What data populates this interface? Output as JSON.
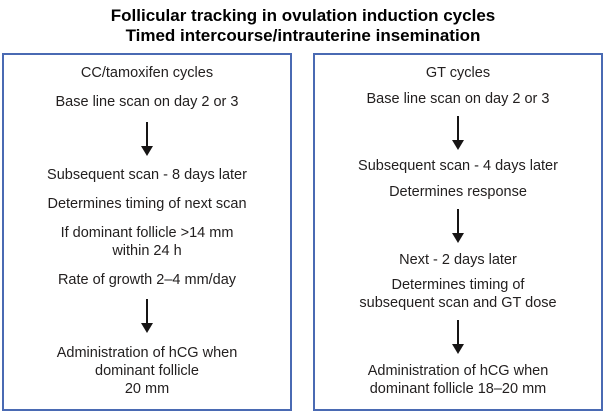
{
  "title": {
    "line1": "Follicular tracking in ovulation induction cycles",
    "line2": "Timed intercourse/intrauterine insemination"
  },
  "colors": {
    "box_border": "#4a6ab3",
    "text": "#232020",
    "arrow": "#171515",
    "background": "#ffffff"
  },
  "columns": [
    {
      "id": "cc-tamoxifen",
      "heading": "CC/tamoxifen cycles",
      "steps": [
        {
          "type": "text",
          "lines": [
            "Base line scan on day 2 or 3"
          ]
        },
        {
          "type": "arrow"
        },
        {
          "type": "text",
          "lines": [
            "Subsequent scan - 8 days later"
          ]
        },
        {
          "type": "text",
          "lines": [
            "Determines timing of next scan"
          ]
        },
        {
          "type": "text",
          "lines": [
            "If dominant follicle >14 mm",
            "within 24 h"
          ]
        },
        {
          "type": "text",
          "lines": [
            "Rate of growth 2–4 mm/day"
          ]
        },
        {
          "type": "arrow"
        },
        {
          "type": "text",
          "lines": [
            "Administration of hCG when",
            "dominant follicle",
            "20 mm"
          ]
        }
      ]
    },
    {
      "id": "gt",
      "heading": "GT cycles",
      "steps": [
        {
          "type": "text",
          "lines": [
            "Base line scan on day 2 or 3"
          ]
        },
        {
          "type": "arrow"
        },
        {
          "type": "text",
          "lines": [
            "Subsequent scan - 4 days later"
          ]
        },
        {
          "type": "text",
          "lines": [
            "Determines response"
          ]
        },
        {
          "type": "arrow"
        },
        {
          "type": "text",
          "lines": [
            "Next - 2 days later"
          ]
        },
        {
          "type": "text",
          "lines": [
            "Determines timing of",
            "subsequent scan and GT dose"
          ]
        },
        {
          "type": "arrow"
        },
        {
          "type": "text",
          "lines": [
            "Administration of hCG when",
            "dominant follicle 18–20 mm"
          ]
        }
      ]
    }
  ]
}
